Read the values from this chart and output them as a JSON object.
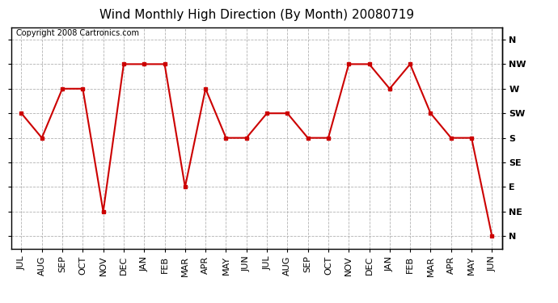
{
  "title": "Wind Monthly High Direction (By Month) 20080719",
  "copyright": "Copyright 2008 Cartronics.com",
  "months": [
    "JUL",
    "AUG",
    "SEP",
    "OCT",
    "NOV",
    "DEC",
    "JAN",
    "FEB",
    "MAR",
    "APR",
    "MAY",
    "JUN",
    "JUL",
    "AUG",
    "SEP",
    "OCT",
    "NOV",
    "DEC",
    "JAN",
    "FEB",
    "MAR",
    "APR",
    "MAY",
    "JUN"
  ],
  "ytick_labels": [
    "N",
    "NW",
    "W",
    "SW",
    "S",
    "SE",
    "E",
    "NE",
    "N"
  ],
  "ytick_values": [
    8,
    7,
    6,
    5,
    4,
    3,
    2,
    1,
    0
  ],
  "values": [
    5,
    4,
    6,
    6,
    1,
    7,
    7,
    7,
    2,
    6,
    4,
    4,
    5,
    5,
    4,
    4,
    7,
    7,
    6,
    7,
    5,
    4,
    4,
    0
  ],
  "line_color": "#cc0000",
  "marker": "s",
  "marker_size": 3,
  "line_width": 1.5,
  "bg_color": "#ffffff",
  "plot_bg_color": "#ffffff",
  "grid_color": "#aaaaaa",
  "title_fontsize": 11,
  "copyright_fontsize": 7,
  "tick_fontsize": 8,
  "figwidth": 6.9,
  "figheight": 3.75,
  "dpi": 100
}
